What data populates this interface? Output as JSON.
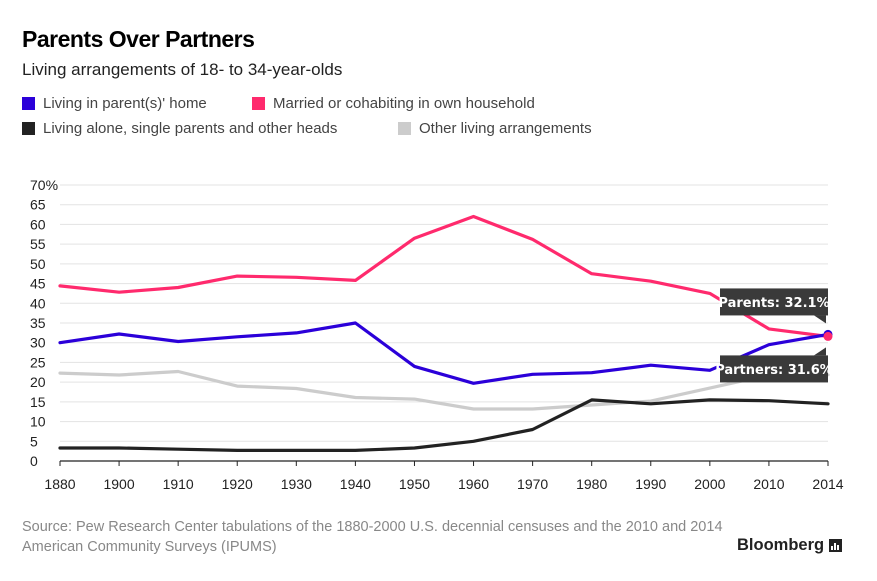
{
  "colors": {
    "parents": "#2b00d9",
    "married": "#ff2a6d",
    "alone": "#222222",
    "other": "#cccccc",
    "grid": "#e3e3e3",
    "callout_bg": "#3a3a3a"
  },
  "legend": [
    {
      "label": "Living in parent(s)' home",
      "color": "#2b00d9"
    },
    {
      "label": "Married or cohabiting in own household",
      "color": "#ff2a6d"
    },
    {
      "label": "Living alone, single parents and other heads",
      "color": "#222222"
    },
    {
      "label": "Other living arrangements",
      "color": "#cccccc"
    }
  ],
  "chart_data": {
    "type": "line",
    "title": "Parents Over Partners",
    "subtitle": "Living arrangements of 18- to 34-year-olds",
    "x": [
      1880,
      1900,
      1910,
      1920,
      1930,
      1940,
      1950,
      1960,
      1970,
      1980,
      1990,
      2000,
      2010,
      2014
    ],
    "x_tick_labels": [
      "1880",
      "1900",
      "1910",
      "1920",
      "1930",
      "1940",
      "1950",
      "1960",
      "1970",
      "1980",
      "1990",
      "2000",
      "2010",
      "2014"
    ],
    "y_ticks": [
      0,
      5,
      10,
      15,
      20,
      25,
      30,
      35,
      40,
      45,
      50,
      55,
      60,
      65,
      70
    ],
    "y_tick_labels": [
      "0",
      "5",
      "10",
      "15",
      "20",
      "25",
      "30",
      "35",
      "40",
      "45",
      "50",
      "55",
      "60",
      "65",
      "70%"
    ],
    "ylim": [
      0,
      70
    ],
    "grid": true,
    "series": [
      {
        "name": "Living in parent(s)' home",
        "values": [
          30.0,
          32.2,
          30.3,
          31.5,
          32.5,
          35.0,
          24.0,
          19.7,
          22.0,
          22.4,
          24.3,
          23.0,
          29.5,
          32.1
        ]
      },
      {
        "name": "Married or cohabiting in own household",
        "values": [
          44.4,
          42.8,
          44.0,
          46.9,
          46.6,
          45.8,
          56.5,
          62.0,
          56.2,
          47.5,
          45.6,
          42.5,
          33.5,
          31.6
        ]
      },
      {
        "name": "Living alone, single parents and other heads",
        "values": [
          3.3,
          3.3,
          3.0,
          2.7,
          2.7,
          2.7,
          3.3,
          5.0,
          8.0,
          15.5,
          14.5,
          15.5,
          15.3,
          14.5
        ]
      },
      {
        "name": "Other living arrangements",
        "values": [
          22.3,
          21.8,
          22.7,
          19.0,
          18.4,
          16.1,
          15.7,
          13.2,
          13.2,
          14.2,
          15.2,
          18.5,
          21.8,
          21.9
        ]
      }
    ],
    "annotations": [
      {
        "text": "Parents: 32.1%",
        "x": 2014,
        "y": 32.1,
        "position": "above"
      },
      {
        "text": "Partners: 31.6%",
        "x": 2014,
        "y": 31.6,
        "position": "below"
      }
    ]
  },
  "source": "Source: Pew Research Center tabulations of the 1880-2000 U.S. decennial censuses and the 2010 and 2014 American Community Surveys (IPUMS)",
  "brand": "Bloomberg"
}
